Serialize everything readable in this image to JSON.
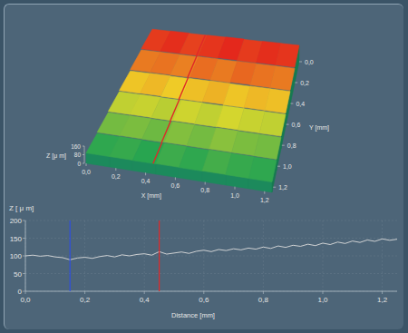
{
  "chart_data": [
    {
      "type": "surface",
      "xlabel": "X [mm]",
      "ylabel": "Y [mm]",
      "zlabel": "Z [μ m]",
      "xlim": [
        0,
        1.25
      ],
      "ylim": [
        0,
        1.25
      ],
      "zlim": [
        0,
        160
      ],
      "xticks": [
        {
          "value": 0,
          "label": "0,0"
        },
        {
          "value": 0.2,
          "label": "0,2"
        },
        {
          "value": 0.4,
          "label": "0,4"
        },
        {
          "value": 0.6,
          "label": "0,6"
        },
        {
          "value": 0.8,
          "label": "0,8"
        },
        {
          "value": 1.0,
          "label": "1,0"
        },
        {
          "value": 1.2,
          "label": "1,2"
        }
      ],
      "yticks": [
        {
          "value": 0,
          "label": "0,0"
        },
        {
          "value": 0.2,
          "label": "0,2"
        },
        {
          "value": 0.4,
          "label": "0,4"
        },
        {
          "value": 0.6,
          "label": "0,6"
        },
        {
          "value": 0.8,
          "label": "0,8"
        },
        {
          "value": 1.0,
          "label": "1,0"
        },
        {
          "value": 1.2,
          "label": "1,2"
        }
      ],
      "zticks": [
        0,
        80,
        160
      ],
      "z": [
        [
          150,
          152,
          149,
          151,
          153,
          150,
          152,
          151
        ],
        [
          140,
          141,
          139,
          142,
          140,
          143,
          141,
          140
        ],
        [
          128,
          130,
          127,
          129,
          131,
          128,
          130,
          129
        ],
        [
          117,
          118,
          116,
          119,
          117,
          120,
          118,
          117
        ],
        [
          106,
          107,
          105,
          108,
          106,
          109,
          107,
          106
        ],
        [
          96,
          97,
          95,
          98,
          96,
          99,
          97,
          96
        ]
      ],
      "section": {
        "x": 0.45,
        "color": "#e02828"
      }
    },
    {
      "type": "line",
      "xlabel": "Distance [mm]",
      "ylabel": "Z [ μ m]",
      "xlim": [
        0,
        1.25
      ],
      "ylim": [
        0,
        200
      ],
      "xticks": [
        {
          "value": 0,
          "label": "0,0"
        },
        {
          "value": 0.2,
          "label": "0,2"
        },
        {
          "value": 0.4,
          "label": "0,4"
        },
        {
          "value": 0.6,
          "label": "0,6"
        },
        {
          "value": 0.8,
          "label": "0,8"
        },
        {
          "value": 1.0,
          "label": "1,0"
        },
        {
          "value": 1.2,
          "label": "1,2"
        }
      ],
      "yticks": [
        0,
        50,
        100,
        150,
        200
      ],
      "grid": true,
      "color": "#dcdcdc",
      "x": [
        0,
        0.025,
        0.05,
        0.075,
        0.1,
        0.125,
        0.15,
        0.175,
        0.2,
        0.225,
        0.25,
        0.275,
        0.3,
        0.325,
        0.35,
        0.375,
        0.4,
        0.425,
        0.45,
        0.475,
        0.5,
        0.525,
        0.55,
        0.575,
        0.6,
        0.625,
        0.65,
        0.675,
        0.7,
        0.725,
        0.75,
        0.775,
        0.8,
        0.825,
        0.85,
        0.875,
        0.9,
        0.925,
        0.95,
        0.975,
        1.0,
        1.025,
        1.05,
        1.075,
        1.1,
        1.125,
        1.15,
        1.175,
        1.2,
        1.225,
        1.25
      ],
      "values": [
        100,
        102,
        99,
        101,
        97,
        95,
        89,
        94,
        96,
        93,
        98,
        101,
        97,
        103,
        100,
        104,
        106,
        102,
        112,
        105,
        108,
        111,
        107,
        113,
        116,
        112,
        118,
        115,
        120,
        117,
        122,
        119,
        125,
        121,
        128,
        124,
        130,
        127,
        133,
        129,
        136,
        132,
        139,
        135,
        142,
        138,
        145,
        141,
        148,
        144,
        147
      ],
      "cursors": [
        {
          "x": 0.15,
          "color": "#2f4fe0"
        },
        {
          "x": 0.45,
          "color": "#e02828"
        }
      ]
    }
  ]
}
